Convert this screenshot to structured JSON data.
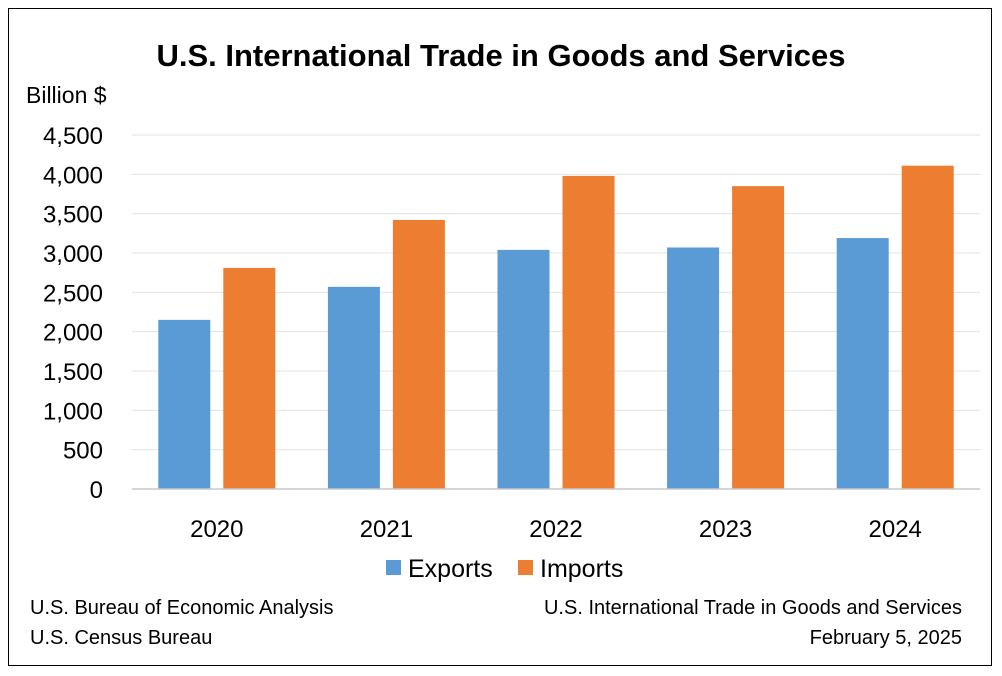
{
  "chart_data": {
    "type": "bar",
    "title": "U.S. International Trade in Goods and Services",
    "ylabel": "Billion $",
    "categories": [
      "2020",
      "2021",
      "2022",
      "2023",
      "2024"
    ],
    "series": [
      {
        "name": "Exports",
        "color": "#5b9bd5",
        "values": [
          2150,
          2570,
          3040,
          3070,
          3190
        ]
      },
      {
        "name": "Imports",
        "color": "#ed7d31",
        "values": [
          2810,
          3420,
          3980,
          3850,
          4110
        ]
      }
    ],
    "ylim": [
      0,
      4500
    ],
    "yticks": [
      "0",
      "500",
      "1,000",
      "1,500",
      "2,000",
      "2,500",
      "3,000",
      "3,500",
      "4,000",
      "4,500"
    ],
    "ytick_values": [
      0,
      500,
      1000,
      1500,
      2000,
      2500,
      3000,
      3500,
      4000,
      4500
    ],
    "grid": true,
    "legend_position": "bottom"
  },
  "footer": {
    "left_line1": "U.S. Bureau of Economic Analysis",
    "left_line2": "U.S. Census Bureau",
    "right_line1": "U.S. International Trade in Goods and Services",
    "right_line2": "February 5, 2025"
  }
}
